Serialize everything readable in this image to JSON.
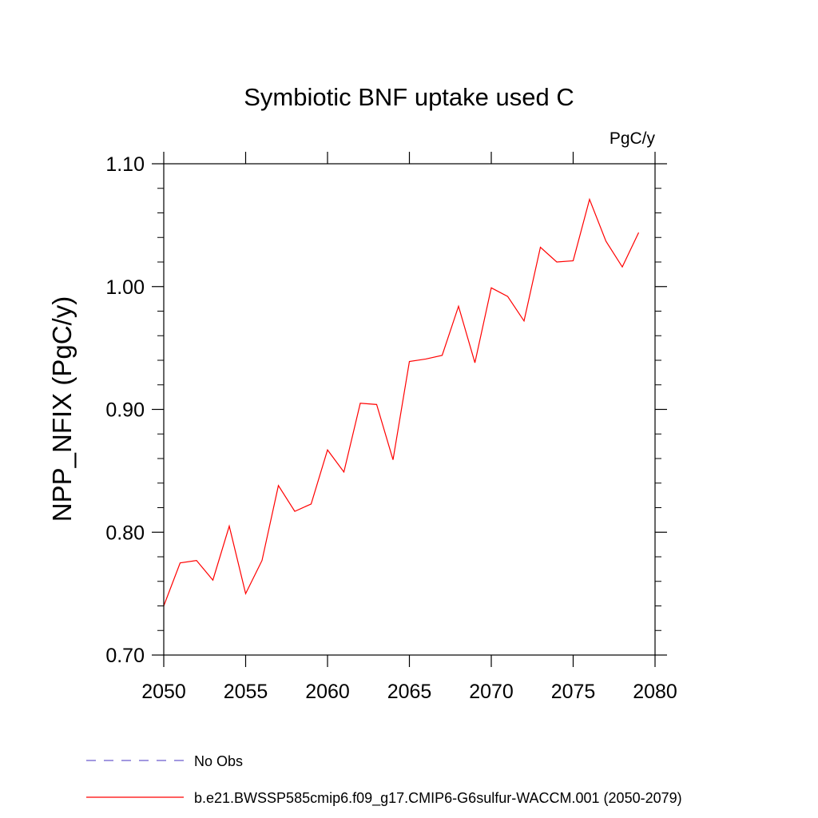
{
  "chart_data": {
    "type": "line",
    "title": "Symbiotic BNF uptake used C",
    "units_label": "PgC/y",
    "xlabel": "",
    "ylabel": "NPP_NFIX  (PgC/y)",
    "xlim": [
      2050,
      2080
    ],
    "ylim": [
      0.7,
      1.1
    ],
    "x_ticks": [
      "2050",
      "2055",
      "2060",
      "2065",
      "2070",
      "2075",
      "2080"
    ],
    "y_ticks": [
      "0.70",
      "0.80",
      "0.90",
      "1.00",
      "1.10"
    ],
    "grid": false,
    "legend_position": "bottom-left",
    "series": [
      {
        "name": "No Obs",
        "color": "#6a5acd",
        "style": "dashed",
        "x": [],
        "values": []
      },
      {
        "name": "b.e21.BWSSP585cmip6.f09_g17.CMIP6-G6sulfur-WACCM.001 (2050-2079)",
        "color": "#ff0000",
        "style": "solid",
        "x": [
          2050,
          2051,
          2052,
          2053,
          2054,
          2055,
          2056,
          2057,
          2058,
          2059,
          2060,
          2061,
          2062,
          2063,
          2064,
          2065,
          2066,
          2067,
          2068,
          2069,
          2070,
          2071,
          2072,
          2073,
          2074,
          2075,
          2076,
          2077,
          2078,
          2079
        ],
        "values": [
          0.74,
          0.775,
          0.777,
          0.761,
          0.805,
          0.75,
          0.777,
          0.838,
          0.817,
          0.823,
          0.867,
          0.849,
          0.905,
          0.904,
          0.859,
          0.939,
          0.941,
          0.944,
          0.984,
          0.938,
          0.999,
          0.992,
          0.972,
          1.032,
          1.02,
          1.021,
          1.071,
          1.037,
          1.016,
          1.044
        ]
      }
    ]
  }
}
